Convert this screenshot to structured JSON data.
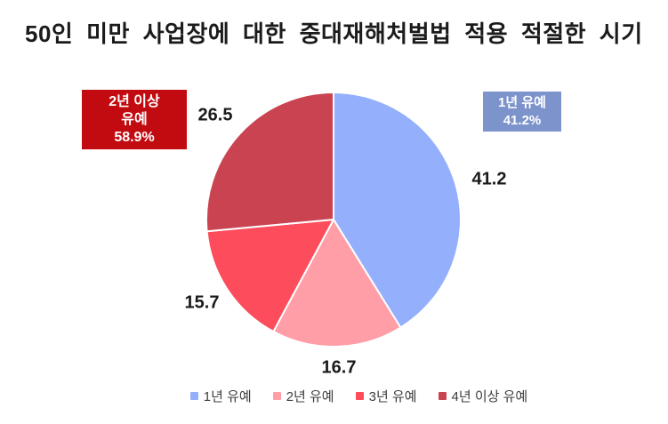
{
  "chart_data": {
    "type": "pie",
    "title": "50인 미만 사업장에 대한 중대재해처벌법 적용 적절한 시기",
    "categories": [
      "1년 유예",
      "2년 유예",
      "3년 유예",
      "4년 이상 유예"
    ],
    "values": [
      41.2,
      16.7,
      15.7,
      26.5
    ],
    "value_labels": [
      "41.2",
      "16.7",
      "15.7",
      "26.5"
    ],
    "colors": [
      "#94AFFC",
      "#FF9EA6",
      "#FD4D5C",
      "#CA4350"
    ],
    "start_angle_deg": 0,
    "direction": "clockwise",
    "grid": "off",
    "legend_position": "bottom",
    "slice_stroke_color": "#FFFFFF",
    "annotations": [
      {
        "id": "left-callout",
        "lines": [
          "2년 이상",
          "유예",
          "58.9%"
        ],
        "bg": "#C20B10",
        "text_color": "#FFFFFF"
      },
      {
        "id": "right-callout",
        "lines": [
          "1년 유예",
          "41.2%"
        ],
        "bg": "#7D93CC",
        "text_color": "#FFFFFF"
      }
    ]
  }
}
